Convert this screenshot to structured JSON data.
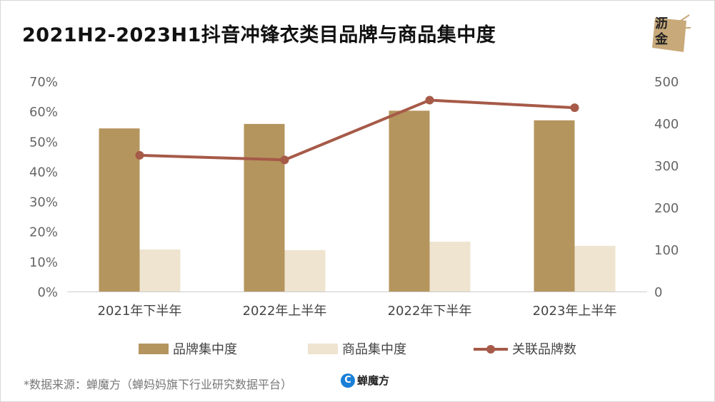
{
  "title": "2021H2-2023H1抖音冲锋衣类目品牌与商品集中度",
  "logo": {
    "line1": "沥",
    "line2": "金"
  },
  "source": "*数据来源：蝉魔方（蝉妈妈旗下行业研究数据平台）",
  "brand": {
    "icon": "C",
    "name": "蝉魔方"
  },
  "colors": {
    "brand_bar": "#b5955e",
    "product_bar": "#efe4d0",
    "line": "#a65a48",
    "axis": "#cccccc",
    "tick": "#666666"
  },
  "chart_data": {
    "type": "bar+line",
    "categories": [
      "2021年下半年",
      "2022年上半年",
      "2022年下半年",
      "2023年上半年"
    ],
    "series": [
      {
        "name": "品牌集中度",
        "type": "bar",
        "axis": "left",
        "values": [
          54.3,
          55.8,
          60.2,
          57.0
        ]
      },
      {
        "name": "商品集中度",
        "type": "bar",
        "axis": "left",
        "values": [
          14.0,
          13.8,
          16.6,
          15.2
        ]
      },
      {
        "name": "关联品牌数",
        "type": "line",
        "axis": "right",
        "values": [
          324,
          313,
          455,
          437
        ]
      }
    ],
    "left_axis": {
      "ylim": [
        0,
        70
      ],
      "ticks": [
        "0%",
        "10%",
        "20%",
        "30%",
        "40%",
        "50%",
        "60%",
        "70%"
      ]
    },
    "right_axis": {
      "ylim": [
        0,
        500
      ],
      "ticks": [
        "0",
        "100",
        "200",
        "300",
        "400",
        "500"
      ]
    },
    "legend_position": "bottom"
  }
}
